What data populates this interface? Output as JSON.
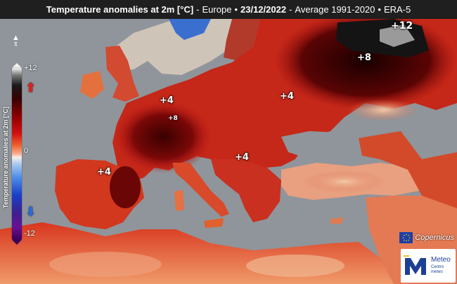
{
  "title": {
    "main": "Temperature anomalies at 2m [°C]",
    "region": "Europe",
    "date": "23/12/2022",
    "reference": "Average 1991-2020",
    "dataset": "ERA-5"
  },
  "legend": {
    "title": "Temperature anomalies at 2m [°C]",
    "max": "+12",
    "mid": "0",
    "min": "-12",
    "colors": [
      "#f2f2f2",
      "#1a1a1a",
      "#8b0000",
      "#d01010",
      "#f5f0ea",
      "#4b8be8",
      "#1b3ec8",
      "#3a005a"
    ]
  },
  "labels": [
    {
      "text": "+12",
      "name": "anomaly-label-russia-north"
    },
    {
      "text": "+8",
      "name": "anomaly-label-russia"
    },
    {
      "text": "+4",
      "name": "anomaly-label-france"
    },
    {
      "text": "+8",
      "name": "anomaly-label-switzerland"
    },
    {
      "text": "+4",
      "name": "anomaly-label-ukraine"
    },
    {
      "text": "+4",
      "name": "anomaly-label-iberia"
    },
    {
      "text": "+4",
      "name": "anomaly-label-balkans"
    }
  ],
  "logos": {
    "copernicus": "Copernicus",
    "meteo": "Meteo",
    "meteo_sub": "Centro meteo"
  },
  "icons": [
    "north-arrow-icon",
    "warm-arrow-icon",
    "cold-arrow-icon",
    "eu-flag-icon",
    "meteo-logo-icon"
  ]
}
